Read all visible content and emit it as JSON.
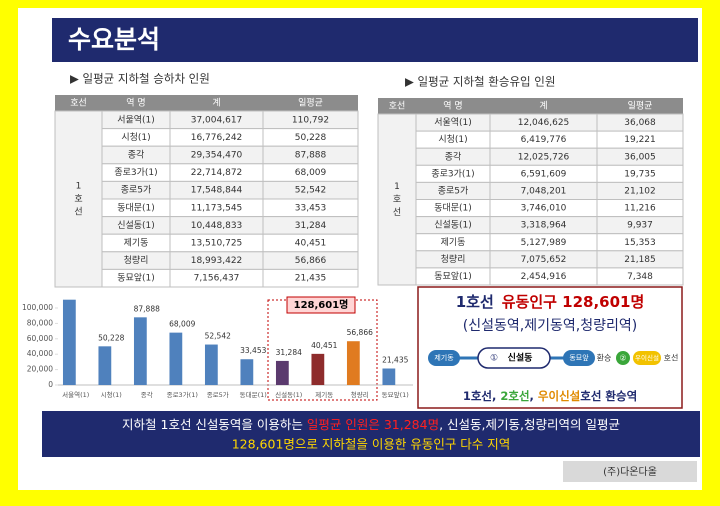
{
  "header": {
    "title": "수요분석"
  },
  "sections": [
    "▶ 일평균 지하철 승하차 인원",
    "▶ 일평균 지하철 환승유입 인원"
  ],
  "tables": [
    {
      "header": [
        "호선",
        "역 명",
        "계",
        "일평균"
      ],
      "line_chars": [
        "1",
        "호",
        "선"
      ],
      "rows": [
        [
          "서울역(1)",
          "37,004,617",
          "110,792"
        ],
        [
          "시청(1)",
          "16,776,242",
          "50,228"
        ],
        [
          "종각",
          "29,354,470",
          "87,888"
        ],
        [
          "종로3가(1)",
          "22,714,872",
          "68,009"
        ],
        [
          "종로5가",
          "17,548,844",
          "52,542"
        ],
        [
          "동대문(1)",
          "11,173,545",
          "33,453"
        ],
        [
          "신설동(1)",
          "10,448,833",
          "31,284"
        ],
        [
          "제기동",
          "13,510,725",
          "40,451"
        ],
        [
          "청량리",
          "18,993,422",
          "56,866"
        ],
        [
          "동묘앞(1)",
          "7,156,437",
          "21,435"
        ]
      ]
    },
    {
      "header": [
        "호선",
        "역 명",
        "계",
        "일평균"
      ],
      "line_chars": [
        "1",
        "호",
        "선"
      ],
      "rows": [
        [
          "서울역(1)",
          "12,046,625",
          "36,068"
        ],
        [
          "시청(1)",
          "6,419,776",
          "19,221"
        ],
        [
          "종각",
          "12,025,726",
          "36,005"
        ],
        [
          "종로3가(1)",
          "6,591,609",
          "19,735"
        ],
        [
          "종로5가",
          "7,048,201",
          "21,102"
        ],
        [
          "동대문(1)",
          "3,746,010",
          "11,216"
        ],
        [
          "신설동(1)",
          "3,318,964",
          "9,937"
        ],
        [
          "제기동",
          "5,127,989",
          "15,353"
        ],
        [
          "청량리",
          "7,075,652",
          "21,185"
        ],
        [
          "동묘앞(1)",
          "2,454,916",
          "7,348"
        ]
      ]
    }
  ],
  "chart_data": {
    "type": "bar",
    "categories": [
      "서울역(1)",
      "시청(1)",
      "종각",
      "종로3가(1)",
      "종로5가",
      "동대문(1)",
      "신설동(1)",
      "제기동",
      "청량리",
      "동묘앞(1)"
    ],
    "values": [
      110792,
      50228,
      87888,
      68009,
      52542,
      33453,
      31284,
      40451,
      56866,
      21435
    ],
    "value_labels": [
      null,
      "50,228",
      "87,888",
      "68,009",
      "52,542",
      "33,453",
      "31,284",
      "40,451",
      "56,866",
      "21,435"
    ],
    "colors": [
      "#4f81bd",
      "#4f81bd",
      "#4f81bd",
      "#4f81bd",
      "#4f81bd",
      "#4f81bd",
      "#5b3a6e",
      "#8e2c2c",
      "#e07b20",
      "#4f81bd"
    ],
    "ylim": [
      0,
      110000
    ],
    "yticks": [
      0,
      {
        "value": 20000,
        "label": "20,000"
      },
      {
        "value": 40000,
        "label": "40,000"
      },
      {
        "value": 60000,
        "label": "60,000"
      },
      {
        "value": 80000,
        "label": "80,000"
      },
      {
        "value": 100000,
        "label": "100,000"
      }
    ],
    "grid": false,
    "annotation": "128,601명"
  },
  "box": {
    "title_parts": [
      "1호선",
      "유동인구 128,601명"
    ],
    "subtitle": "(신설동역,제기동역,청량리역)",
    "diagram": [
      "제기동",
      "①",
      "신설동",
      "동묘앞",
      "환승",
      "②",
      "우이신설",
      "호선"
    ],
    "bottom_parts": [
      "1호선, ",
      "2호선",
      ", ",
      "우이신설",
      "호선 환승역"
    ]
  },
  "banner": {
    "line1_parts": [
      "지하철 1호선 신설동역을 이용하는 ",
      "일평균 인원은 31,284명",
      ",  신설동,제기동,청량리역의 일평균"
    ],
    "line2": "128,601명으로 지하철을 이용한 유동인구 다수 지역"
  },
  "footer": "(주)다온다올"
}
